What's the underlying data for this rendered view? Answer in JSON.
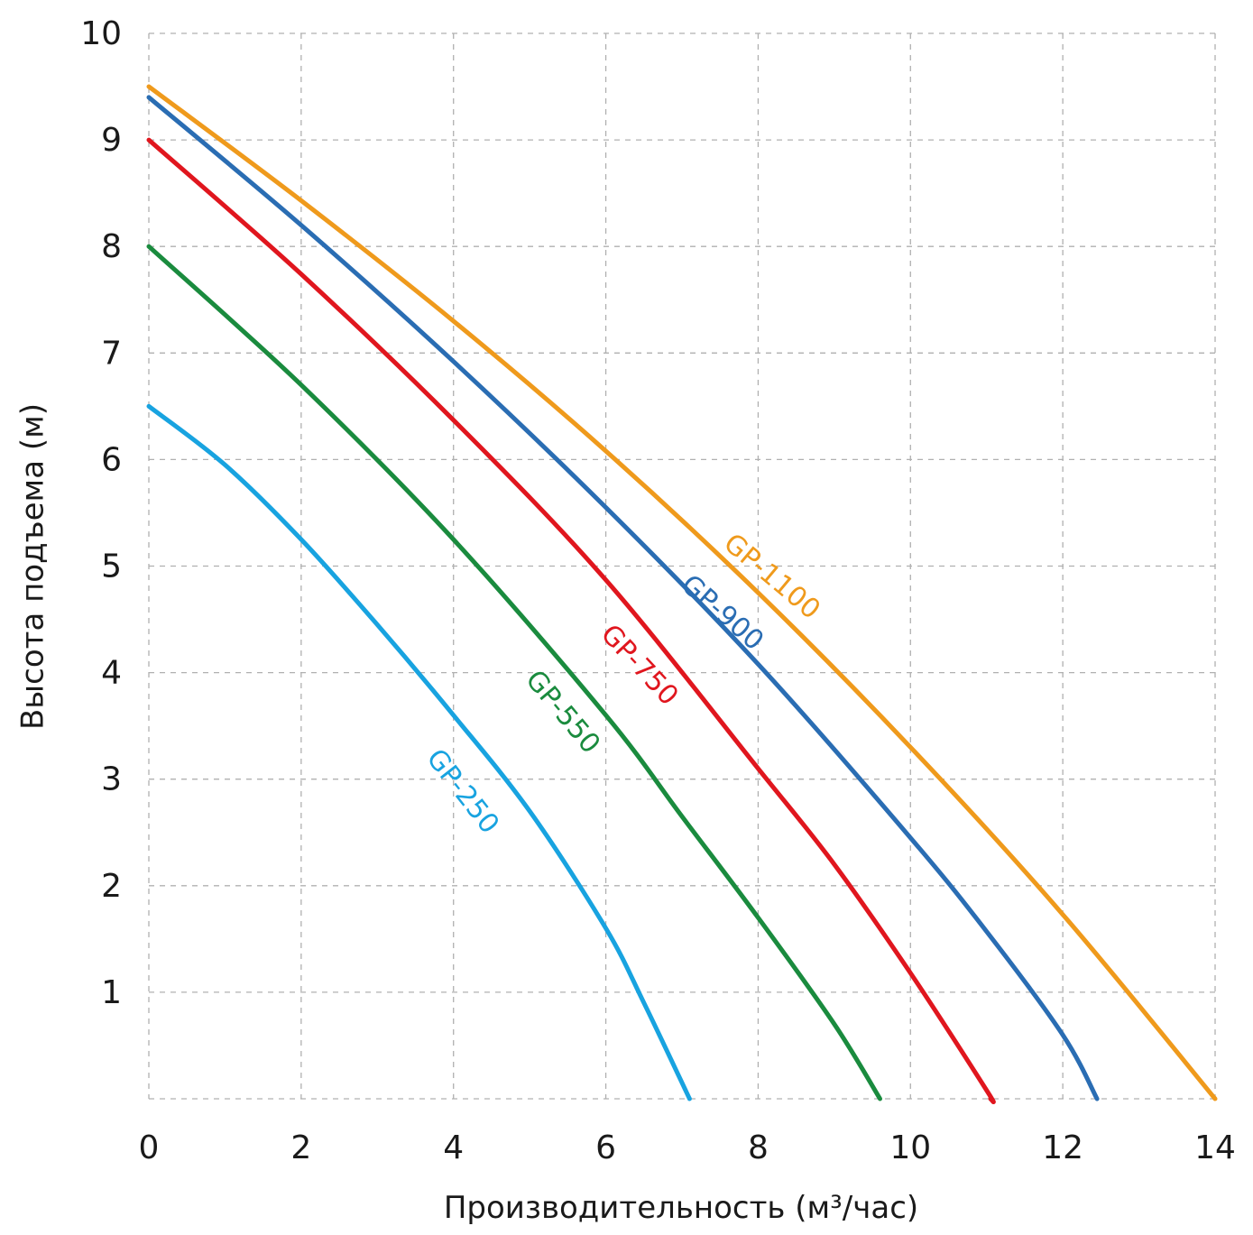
{
  "chart_data": {
    "type": "line",
    "xlabel": "Производительность (м³/час)",
    "ylabel": "Высота подъема (м)",
    "xlim": [
      0,
      14
    ],
    "ylim": [
      0,
      10
    ],
    "xticks": [
      0,
      2,
      4,
      6,
      8,
      10,
      12,
      14
    ],
    "yticks": [
      1,
      2,
      3,
      4,
      5,
      6,
      7,
      8,
      9,
      10
    ],
    "grid": true,
    "legend": "labels on lines",
    "series": [
      {
        "name": "GP-1100",
        "color": "#ef9a1c",
        "points": [
          [
            0,
            9.5
          ],
          [
            2,
            8.43
          ],
          [
            4,
            7.3
          ],
          [
            6,
            6.08
          ],
          [
            8,
            4.75
          ],
          [
            10,
            3.3
          ],
          [
            12,
            1.73
          ],
          [
            14,
            0
          ]
        ]
      },
      {
        "name": "GP-900",
        "color": "#2a6db3",
        "points": [
          [
            0,
            9.4
          ],
          [
            2,
            8.2
          ],
          [
            4,
            6.92
          ],
          [
            6,
            5.55
          ],
          [
            8,
            4.08
          ],
          [
            10,
            2.45
          ],
          [
            11,
            1.57
          ],
          [
            12,
            0.6
          ],
          [
            12.45,
            0
          ]
        ]
      },
      {
        "name": "GP-750",
        "color": "#e0161e",
        "points": [
          [
            0,
            9.0
          ],
          [
            2,
            7.74
          ],
          [
            4,
            6.37
          ],
          [
            6,
            4.87
          ],
          [
            8,
            3.1
          ],
          [
            9,
            2.2
          ],
          [
            10,
            1.18
          ],
          [
            11,
            0.08
          ],
          [
            11.05,
            0
          ]
        ]
      },
      {
        "name": "GP-550",
        "color": "#1a8b3e",
        "points": [
          [
            0,
            8.0
          ],
          [
            2,
            6.7
          ],
          [
            4,
            5.25
          ],
          [
            6,
            3.6
          ],
          [
            7,
            2.65
          ],
          [
            8,
            1.7
          ],
          [
            9,
            0.7
          ],
          [
            9.6,
            0
          ]
        ]
      },
      {
        "name": "GP-250",
        "color": "#18a3e0",
        "points": [
          [
            0,
            6.5
          ],
          [
            1,
            5.95
          ],
          [
            2,
            5.25
          ],
          [
            3,
            4.45
          ],
          [
            4,
            3.6
          ],
          [
            5,
            2.7
          ],
          [
            6,
            1.6
          ],
          [
            6.5,
            0.9
          ],
          [
            7.1,
            0
          ]
        ]
      }
    ]
  }
}
